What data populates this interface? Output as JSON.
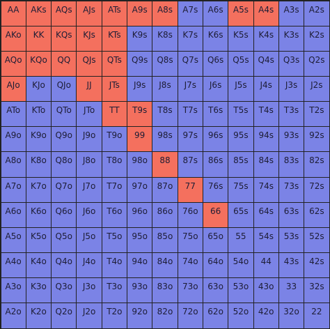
{
  "colors": {
    "raise": "#f4705e",
    "fold": "#7b83e6",
    "border": "#222222",
    "text": "#1d1d35"
  },
  "ranks": [
    "A",
    "K",
    "Q",
    "J",
    "T",
    "9",
    "8",
    "7",
    "6",
    "5",
    "4",
    "3",
    "2"
  ],
  "grid": [
    [
      {
        "hand": "AA",
        "action": "raise"
      },
      {
        "hand": "AKs",
        "action": "raise"
      },
      {
        "hand": "AQs",
        "action": "raise"
      },
      {
        "hand": "AJs",
        "action": "raise"
      },
      {
        "hand": "ATs",
        "action": "raise"
      },
      {
        "hand": "A9s",
        "action": "raise"
      },
      {
        "hand": "A8s",
        "action": "raise"
      },
      {
        "hand": "A7s",
        "action": "fold"
      },
      {
        "hand": "A6s",
        "action": "fold"
      },
      {
        "hand": "A5s",
        "action": "raise"
      },
      {
        "hand": "A4s",
        "action": "raise"
      },
      {
        "hand": "A3s",
        "action": "fold"
      },
      {
        "hand": "A2s",
        "action": "fold"
      }
    ],
    [
      {
        "hand": "AKo",
        "action": "raise"
      },
      {
        "hand": "KK",
        "action": "raise"
      },
      {
        "hand": "KQs",
        "action": "raise"
      },
      {
        "hand": "KJs",
        "action": "raise"
      },
      {
        "hand": "KTs",
        "action": "raise"
      },
      {
        "hand": "K9s",
        "action": "fold"
      },
      {
        "hand": "K8s",
        "action": "fold"
      },
      {
        "hand": "K7s",
        "action": "fold"
      },
      {
        "hand": "K6s",
        "action": "fold"
      },
      {
        "hand": "K5s",
        "action": "fold"
      },
      {
        "hand": "K4s",
        "action": "fold"
      },
      {
        "hand": "K3s",
        "action": "fold"
      },
      {
        "hand": "K2s",
        "action": "fold"
      }
    ],
    [
      {
        "hand": "AQo",
        "action": "raise"
      },
      {
        "hand": "KQo",
        "action": "raise"
      },
      {
        "hand": "QQ",
        "action": "raise"
      },
      {
        "hand": "QJs",
        "action": "raise"
      },
      {
        "hand": "QTs",
        "action": "raise"
      },
      {
        "hand": "Q9s",
        "action": "fold"
      },
      {
        "hand": "Q8s",
        "action": "fold"
      },
      {
        "hand": "Q7s",
        "action": "fold"
      },
      {
        "hand": "Q6s",
        "action": "fold"
      },
      {
        "hand": "Q5s",
        "action": "fold"
      },
      {
        "hand": "Q4s",
        "action": "fold"
      },
      {
        "hand": "Q3s",
        "action": "fold"
      },
      {
        "hand": "Q2s",
        "action": "fold"
      }
    ],
    [
      {
        "hand": "AJo",
        "action": "raise"
      },
      {
        "hand": "KJo",
        "action": "fold"
      },
      {
        "hand": "QJo",
        "action": "fold"
      },
      {
        "hand": "JJ",
        "action": "raise"
      },
      {
        "hand": "JTs",
        "action": "raise"
      },
      {
        "hand": "J9s",
        "action": "fold"
      },
      {
        "hand": "J8s",
        "action": "fold"
      },
      {
        "hand": "J7s",
        "action": "fold"
      },
      {
        "hand": "J6s",
        "action": "fold"
      },
      {
        "hand": "J5s",
        "action": "fold"
      },
      {
        "hand": "J4s",
        "action": "fold"
      },
      {
        "hand": "J3s",
        "action": "fold"
      },
      {
        "hand": "J2s",
        "action": "fold"
      }
    ],
    [
      {
        "hand": "ATo",
        "action": "fold"
      },
      {
        "hand": "KTo",
        "action": "fold"
      },
      {
        "hand": "QTo",
        "action": "fold"
      },
      {
        "hand": "JTo",
        "action": "fold"
      },
      {
        "hand": "TT",
        "action": "raise"
      },
      {
        "hand": "T9s",
        "action": "raise"
      },
      {
        "hand": "T8s",
        "action": "fold"
      },
      {
        "hand": "T7s",
        "action": "fold"
      },
      {
        "hand": "T6s",
        "action": "fold"
      },
      {
        "hand": "T5s",
        "action": "fold"
      },
      {
        "hand": "T4s",
        "action": "fold"
      },
      {
        "hand": "T3s",
        "action": "fold"
      },
      {
        "hand": "T2s",
        "action": "fold"
      }
    ],
    [
      {
        "hand": "A9o",
        "action": "fold"
      },
      {
        "hand": "K9o",
        "action": "fold"
      },
      {
        "hand": "Q9o",
        "action": "fold"
      },
      {
        "hand": "J9o",
        "action": "fold"
      },
      {
        "hand": "T9o",
        "action": "fold"
      },
      {
        "hand": "99",
        "action": "raise"
      },
      {
        "hand": "98s",
        "action": "fold"
      },
      {
        "hand": "97s",
        "action": "fold"
      },
      {
        "hand": "96s",
        "action": "fold"
      },
      {
        "hand": "95s",
        "action": "fold"
      },
      {
        "hand": "94s",
        "action": "fold"
      },
      {
        "hand": "93s",
        "action": "fold"
      },
      {
        "hand": "92s",
        "action": "fold"
      }
    ],
    [
      {
        "hand": "A8o",
        "action": "fold"
      },
      {
        "hand": "K8o",
        "action": "fold"
      },
      {
        "hand": "Q8o",
        "action": "fold"
      },
      {
        "hand": "J8o",
        "action": "fold"
      },
      {
        "hand": "T8o",
        "action": "fold"
      },
      {
        "hand": "98o",
        "action": "fold"
      },
      {
        "hand": "88",
        "action": "raise"
      },
      {
        "hand": "87s",
        "action": "fold"
      },
      {
        "hand": "86s",
        "action": "fold"
      },
      {
        "hand": "85s",
        "action": "fold"
      },
      {
        "hand": "84s",
        "action": "fold"
      },
      {
        "hand": "83s",
        "action": "fold"
      },
      {
        "hand": "82s",
        "action": "fold"
      }
    ],
    [
      {
        "hand": "A7o",
        "action": "fold"
      },
      {
        "hand": "K7o",
        "action": "fold"
      },
      {
        "hand": "Q7o",
        "action": "fold"
      },
      {
        "hand": "J7o",
        "action": "fold"
      },
      {
        "hand": "T7o",
        "action": "fold"
      },
      {
        "hand": "97o",
        "action": "fold"
      },
      {
        "hand": "87o",
        "action": "fold"
      },
      {
        "hand": "77",
        "action": "raise"
      },
      {
        "hand": "76s",
        "action": "fold"
      },
      {
        "hand": "75s",
        "action": "fold"
      },
      {
        "hand": "74s",
        "action": "fold"
      },
      {
        "hand": "73s",
        "action": "fold"
      },
      {
        "hand": "72s",
        "action": "fold"
      }
    ],
    [
      {
        "hand": "A6o",
        "action": "fold"
      },
      {
        "hand": "K6o",
        "action": "fold"
      },
      {
        "hand": "Q6o",
        "action": "fold"
      },
      {
        "hand": "J6o",
        "action": "fold"
      },
      {
        "hand": "T6o",
        "action": "fold"
      },
      {
        "hand": "96o",
        "action": "fold"
      },
      {
        "hand": "86o",
        "action": "fold"
      },
      {
        "hand": "76o",
        "action": "fold"
      },
      {
        "hand": "66",
        "action": "raise"
      },
      {
        "hand": "65s",
        "action": "fold"
      },
      {
        "hand": "64s",
        "action": "fold"
      },
      {
        "hand": "63s",
        "action": "fold"
      },
      {
        "hand": "62s",
        "action": "fold"
      }
    ],
    [
      {
        "hand": "A5o",
        "action": "fold"
      },
      {
        "hand": "K5o",
        "action": "fold"
      },
      {
        "hand": "Q5o",
        "action": "fold"
      },
      {
        "hand": "J5o",
        "action": "fold"
      },
      {
        "hand": "T5o",
        "action": "fold"
      },
      {
        "hand": "95o",
        "action": "fold"
      },
      {
        "hand": "85o",
        "action": "fold"
      },
      {
        "hand": "75o",
        "action": "fold"
      },
      {
        "hand": "65o",
        "action": "fold"
      },
      {
        "hand": "55",
        "action": "fold"
      },
      {
        "hand": "54s",
        "action": "fold"
      },
      {
        "hand": "53s",
        "action": "fold"
      },
      {
        "hand": "52s",
        "action": "fold"
      }
    ],
    [
      {
        "hand": "A4o",
        "action": "fold"
      },
      {
        "hand": "K4o",
        "action": "fold"
      },
      {
        "hand": "Q4o",
        "action": "fold"
      },
      {
        "hand": "J4o",
        "action": "fold"
      },
      {
        "hand": "T4o",
        "action": "fold"
      },
      {
        "hand": "94o",
        "action": "fold"
      },
      {
        "hand": "84o",
        "action": "fold"
      },
      {
        "hand": "74o",
        "action": "fold"
      },
      {
        "hand": "64o",
        "action": "fold"
      },
      {
        "hand": "54o",
        "action": "fold"
      },
      {
        "hand": "44",
        "action": "fold"
      },
      {
        "hand": "43s",
        "action": "fold"
      },
      {
        "hand": "42s",
        "action": "fold"
      }
    ],
    [
      {
        "hand": "A3o",
        "action": "fold"
      },
      {
        "hand": "K3o",
        "action": "fold"
      },
      {
        "hand": "Q3o",
        "action": "fold"
      },
      {
        "hand": "J3o",
        "action": "fold"
      },
      {
        "hand": "T3o",
        "action": "fold"
      },
      {
        "hand": "93o",
        "action": "fold"
      },
      {
        "hand": "83o",
        "action": "fold"
      },
      {
        "hand": "73o",
        "action": "fold"
      },
      {
        "hand": "63o",
        "action": "fold"
      },
      {
        "hand": "53o",
        "action": "fold"
      },
      {
        "hand": "43o",
        "action": "fold"
      },
      {
        "hand": "33",
        "action": "fold"
      },
      {
        "hand": "32s",
        "action": "fold"
      }
    ],
    [
      {
        "hand": "A2o",
        "action": "fold"
      },
      {
        "hand": "K2o",
        "action": "fold"
      },
      {
        "hand": "Q2o",
        "action": "fold"
      },
      {
        "hand": "J2o",
        "action": "fold"
      },
      {
        "hand": "T2o",
        "action": "fold"
      },
      {
        "hand": "92o",
        "action": "fold"
      },
      {
        "hand": "82o",
        "action": "fold"
      },
      {
        "hand": "72o",
        "action": "fold"
      },
      {
        "hand": "62o",
        "action": "fold"
      },
      {
        "hand": "52o",
        "action": "fold"
      },
      {
        "hand": "42o",
        "action": "fold"
      },
      {
        "hand": "32o",
        "action": "fold"
      },
      {
        "hand": "22",
        "action": "fold"
      }
    ]
  ]
}
